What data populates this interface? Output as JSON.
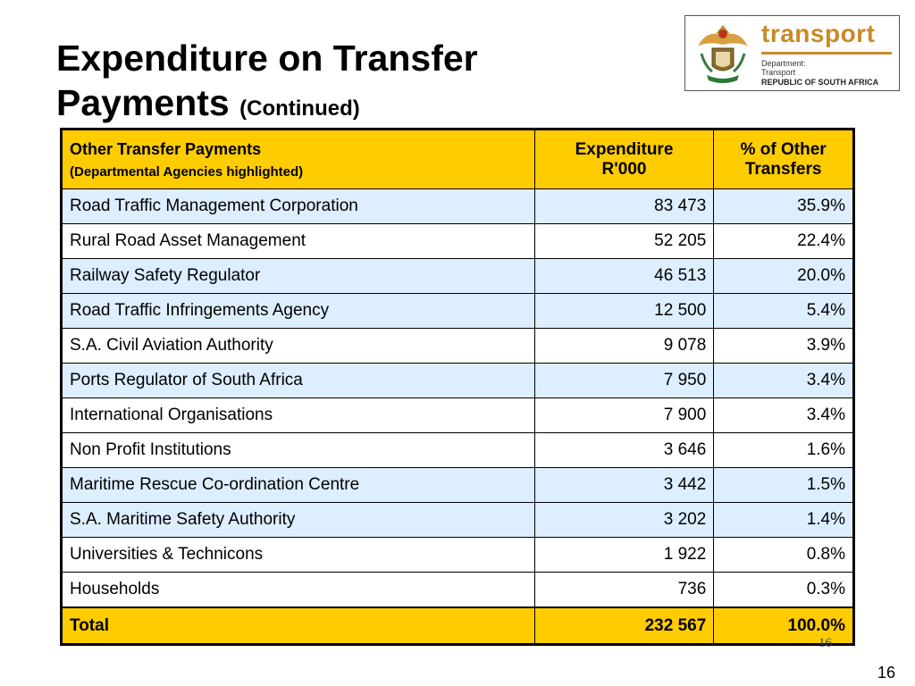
{
  "title": {
    "line1": "Expenditure on Transfer",
    "line2": "Payments",
    "sub": "(Continued)"
  },
  "logo": {
    "brand": "transport",
    "line1": "Department:",
    "line2": "Transport",
    "line3": "REPUBLIC OF SOUTH AFRICA"
  },
  "table": {
    "headers": {
      "col1": "Other Transfer Payments",
      "col1_sub": "(Departmental Agencies highlighted)",
      "col2_a": "Expenditure",
      "col2_b": "R'000",
      "col3_a": "% of Other",
      "col3_b": "Transfers"
    },
    "rows": [
      {
        "name": "Road Traffic Management Corporation",
        "expenditure": "83 473",
        "percent": "35.9%",
        "highlighted": true
      },
      {
        "name": "Rural Road Asset Management",
        "expenditure": "52 205",
        "percent": "22.4%",
        "highlighted": false
      },
      {
        "name": "Railway Safety Regulator",
        "expenditure": "46 513",
        "percent": "20.0%",
        "highlighted": true
      },
      {
        "name": "Road Traffic Infringements Agency",
        "expenditure": "12 500",
        "percent": "5.4%",
        "highlighted": true
      },
      {
        "name": "S.A. Civil Aviation Authority",
        "expenditure": "9 078",
        "percent": "3.9%",
        "highlighted": false
      },
      {
        "name": "Ports Regulator of South Africa",
        "expenditure": "7 950",
        "percent": "3.4%",
        "highlighted": true
      },
      {
        "name": "International Organisations",
        "expenditure": "7 900",
        "percent": "3.4%",
        "highlighted": false
      },
      {
        "name": "Non Profit Institutions",
        "expenditure": "3 646",
        "percent": "1.6%",
        "highlighted": false
      },
      {
        "name": "Maritime Rescue Co-ordination Centre",
        "expenditure": "3 442",
        "percent": "1.5%",
        "highlighted": true
      },
      {
        "name": "S.A. Maritime Safety Authority",
        "expenditure": "3 202",
        "percent": "1.4%",
        "highlighted": true
      },
      {
        "name": "Universities & Technicons",
        "expenditure": "1 922",
        "percent": "0.8%",
        "highlighted": false
      },
      {
        "name": "Households",
        "expenditure": "736",
        "percent": "0.3%",
        "highlighted": false
      }
    ],
    "total": {
      "label": "Total",
      "expenditure": "232 567",
      "percent": "100.0%"
    }
  },
  "inner_page_number": "16",
  "page_number": "16",
  "colors": {
    "header": "#ffcc00",
    "highlight": "#ddeeff",
    "brand": "#c98a2a"
  }
}
